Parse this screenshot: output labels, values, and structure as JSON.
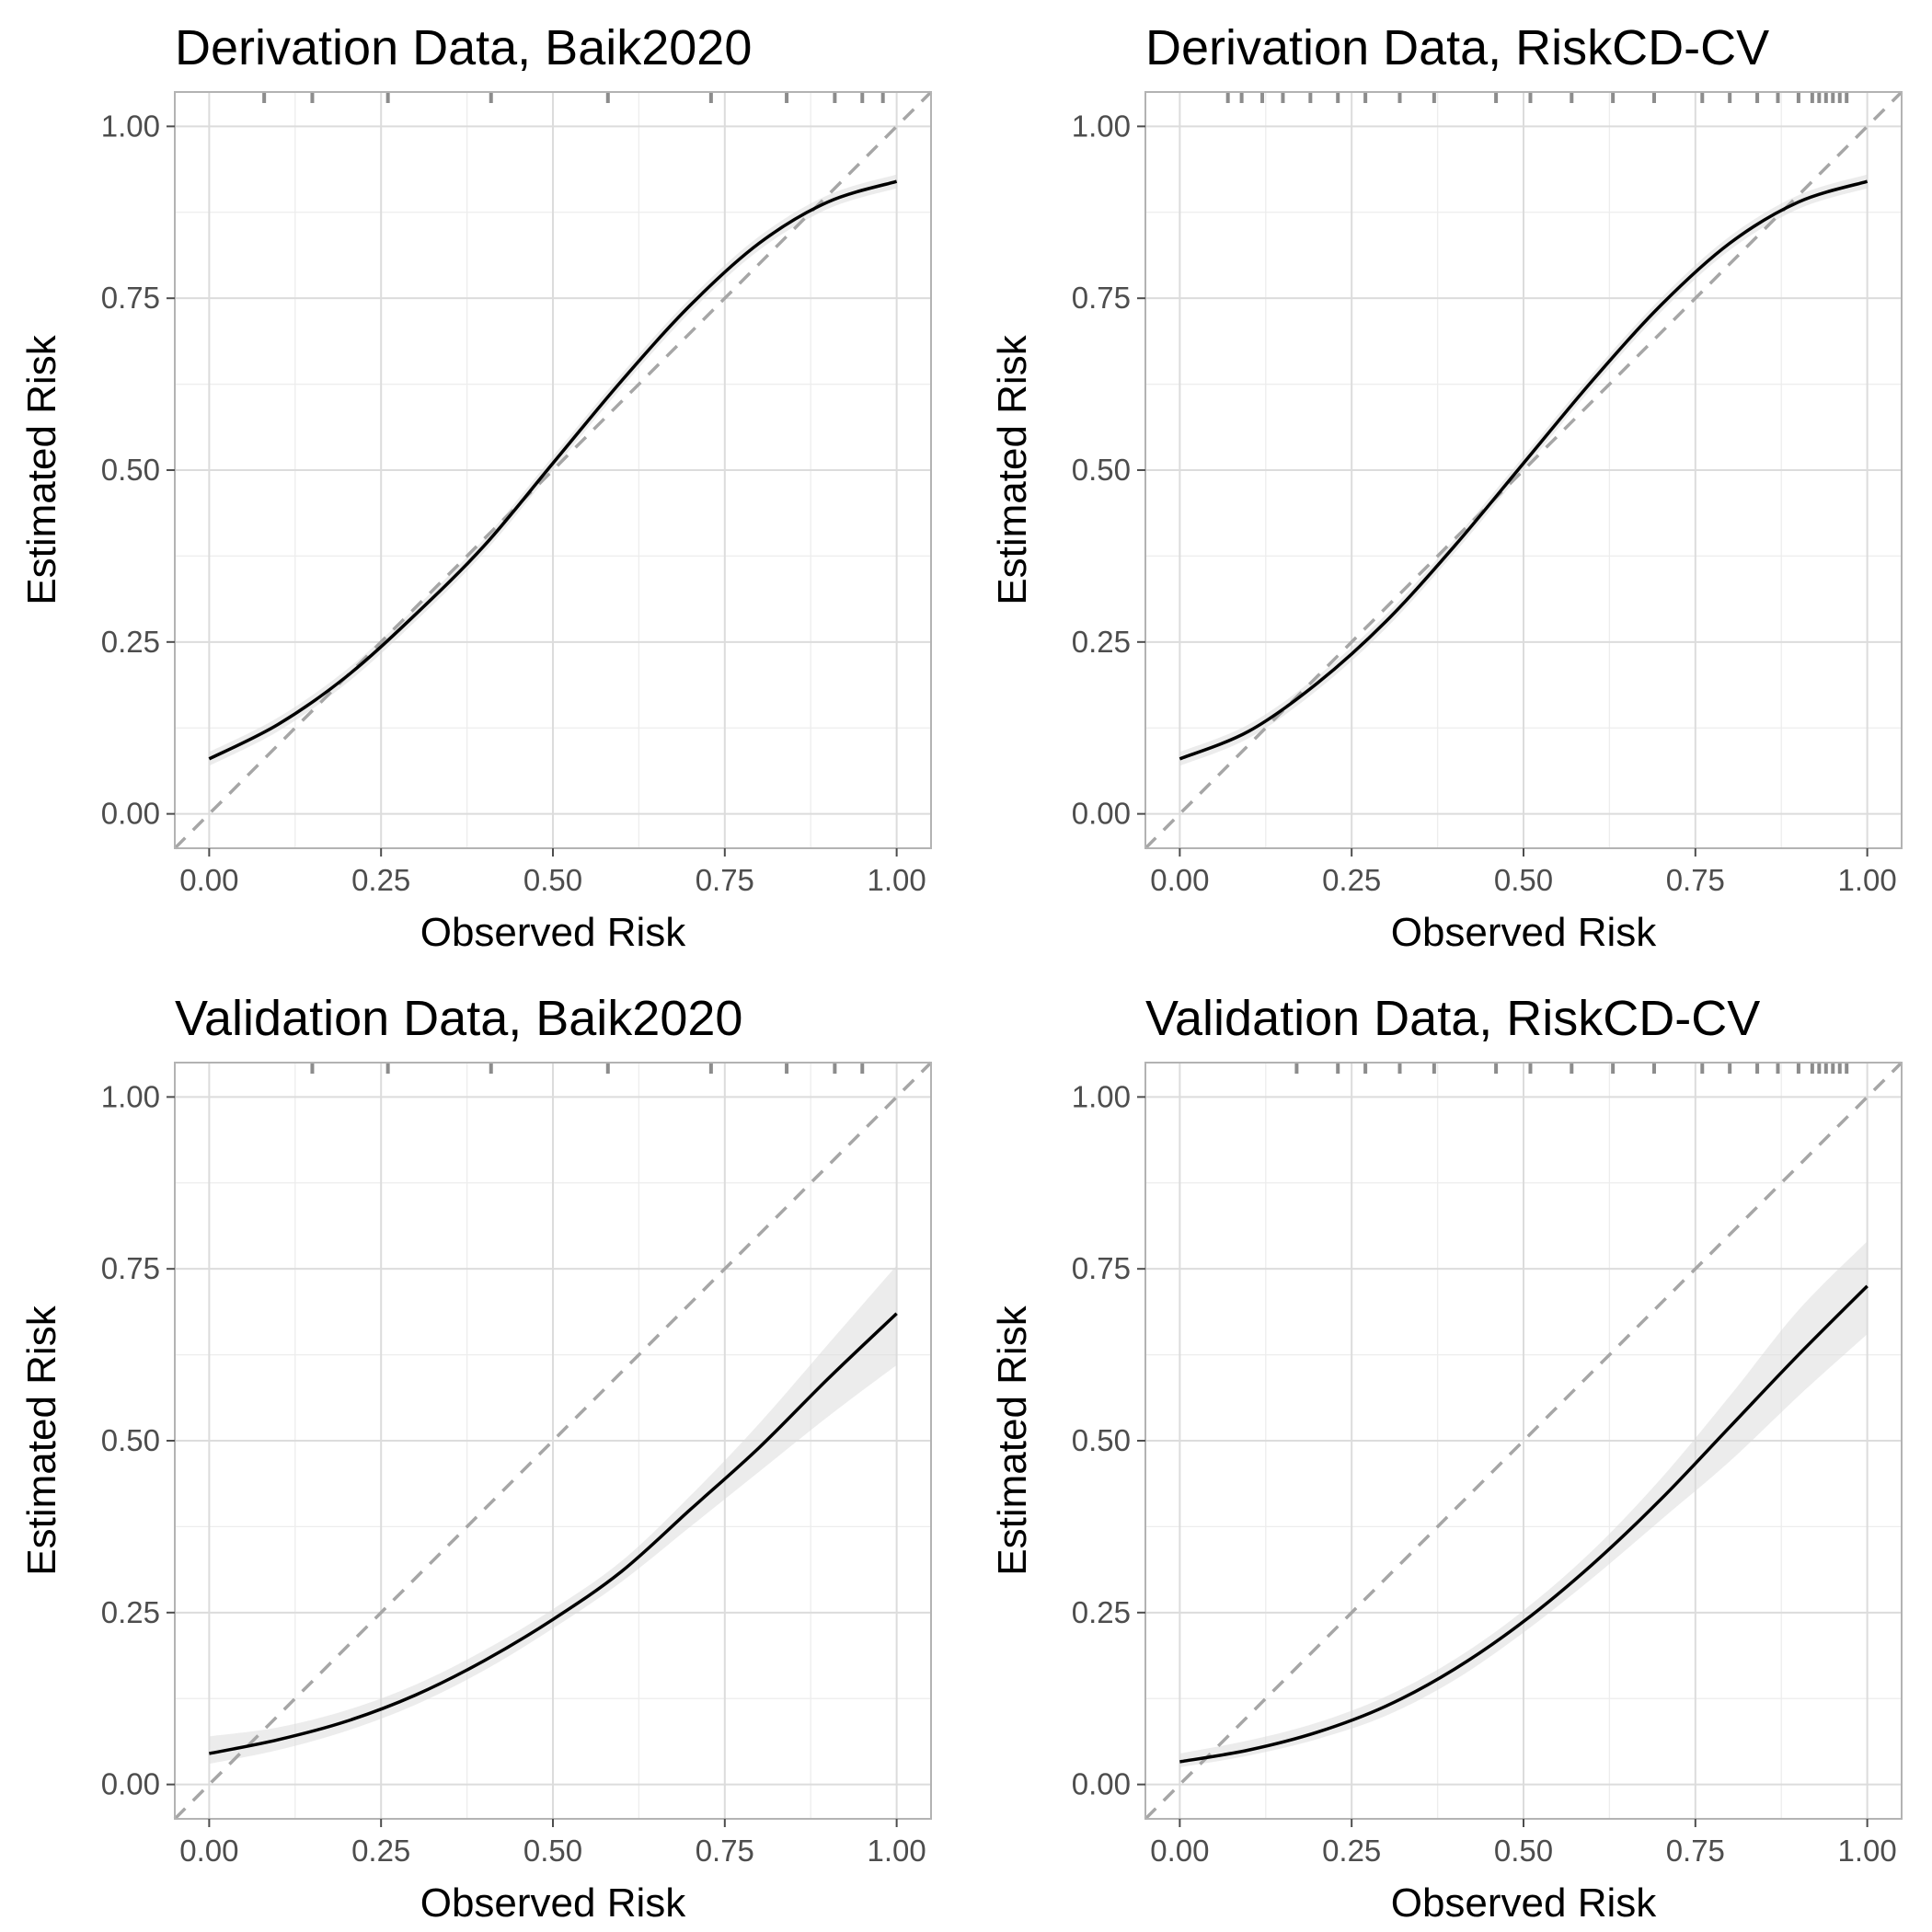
{
  "chart_data": [
    {
      "type": "line",
      "title": "Derivation Data, Baik2020",
      "xlabel": "Observed Risk",
      "ylabel": "Estimated Risk",
      "xlim": [
        -0.05,
        1.05
      ],
      "ylim": [
        -0.05,
        1.05
      ],
      "x_ticks": [
        "0.00",
        "0.25",
        "0.50",
        "0.75",
        "1.00"
      ],
      "y_ticks": [
        "0.00",
        "0.25",
        "0.50",
        "0.75",
        "1.00"
      ],
      "grid": true,
      "reference_line": {
        "style": "dashed",
        "from": [
          0,
          0
        ],
        "to": [
          1,
          1
        ]
      },
      "series": [
        {
          "x": [
            0,
            0.1,
            0.2,
            0.3,
            0.4,
            0.5,
            0.6,
            0.7,
            0.8,
            0.9,
            1.0
          ],
          "y": [
            0.08,
            0.13,
            0.2,
            0.29,
            0.39,
            0.51,
            0.63,
            0.74,
            0.83,
            0.89,
            0.92
          ],
          "lower": [
            0.07,
            0.12,
            0.19,
            0.28,
            0.38,
            0.5,
            0.62,
            0.73,
            0.82,
            0.88,
            0.91
          ],
          "upper": [
            0.09,
            0.14,
            0.21,
            0.3,
            0.4,
            0.52,
            0.64,
            0.75,
            0.84,
            0.9,
            0.93
          ]
        }
      ],
      "rug_x": [
        0.08,
        0.15,
        0.26,
        0.41,
        0.58,
        0.73,
        0.84,
        0.91,
        0.95,
        0.98
      ]
    },
    {
      "type": "line",
      "title": "Derivation Data, RiskCD-CV",
      "xlabel": "Observed Risk",
      "ylabel": "Estimated Risk",
      "xlim": [
        -0.05,
        1.05
      ],
      "ylim": [
        -0.05,
        1.05
      ],
      "x_ticks": [
        "0.00",
        "0.25",
        "0.50",
        "0.75",
        "1.00"
      ],
      "y_ticks": [
        "0.00",
        "0.25",
        "0.50",
        "0.75",
        "1.00"
      ],
      "grid": true,
      "reference_line": {
        "style": "dashed",
        "from": [
          0,
          0
        ],
        "to": [
          1,
          1
        ]
      },
      "series": [
        {
          "x": [
            0,
            0.1,
            0.2,
            0.3,
            0.4,
            0.5,
            0.6,
            0.7,
            0.8,
            0.9,
            1.0
          ],
          "y": [
            0.08,
            0.12,
            0.19,
            0.28,
            0.39,
            0.51,
            0.63,
            0.74,
            0.83,
            0.89,
            0.92
          ],
          "lower": [
            0.07,
            0.11,
            0.18,
            0.27,
            0.38,
            0.5,
            0.62,
            0.73,
            0.82,
            0.88,
            0.91
          ],
          "upper": [
            0.09,
            0.13,
            0.2,
            0.29,
            0.4,
            0.52,
            0.64,
            0.75,
            0.84,
            0.9,
            0.93
          ]
        }
      ],
      "rug_x": [
        0.07,
        0.09,
        0.12,
        0.15,
        0.19,
        0.23,
        0.27,
        0.32,
        0.37,
        0.46,
        0.51,
        0.57,
        0.63,
        0.69,
        0.76,
        0.8,
        0.84,
        0.87,
        0.9,
        0.92,
        0.93,
        0.94,
        0.95,
        0.96,
        0.97
      ]
    },
    {
      "type": "line",
      "title": "Validation Data, Baik2020",
      "xlabel": "Observed Risk",
      "ylabel": "Estimated Risk",
      "xlim": [
        -0.05,
        1.05
      ],
      "ylim": [
        -0.05,
        1.05
      ],
      "x_ticks": [
        "0.00",
        "0.25",
        "0.50",
        "0.75",
        "1.00"
      ],
      "y_ticks": [
        "0.00",
        "0.25",
        "0.50",
        "0.75",
        "1.00"
      ],
      "grid": true,
      "reference_line": {
        "style": "dashed",
        "from": [
          0,
          0
        ],
        "to": [
          1,
          1
        ]
      },
      "series": [
        {
          "x": [
            0,
            0.1,
            0.2,
            0.3,
            0.4,
            0.5,
            0.6,
            0.7,
            0.8,
            0.9,
            1.0
          ],
          "y": [
            0.045,
            0.065,
            0.092,
            0.13,
            0.18,
            0.24,
            0.31,
            0.4,
            0.49,
            0.59,
            0.685
          ],
          "lower": [
            0.03,
            0.05,
            0.078,
            0.116,
            0.166,
            0.227,
            0.295,
            0.375,
            0.455,
            0.535,
            0.61
          ],
          "upper": [
            0.07,
            0.083,
            0.108,
            0.145,
            0.195,
            0.255,
            0.325,
            0.42,
            0.525,
            0.64,
            0.755
          ]
        }
      ],
      "rug_x": [
        0.15,
        0.26,
        0.41,
        0.58,
        0.73,
        0.84,
        0.91,
        0.95
      ]
    },
    {
      "type": "line",
      "title": "Validation Data, RiskCD-CV",
      "xlabel": "Observed Risk",
      "ylabel": "Estimated Risk",
      "xlim": [
        -0.05,
        1.05
      ],
      "ylim": [
        -0.05,
        1.05
      ],
      "x_ticks": [
        "0.00",
        "0.25",
        "0.50",
        "0.75",
        "1.00"
      ],
      "y_ticks": [
        "0.00",
        "0.25",
        "0.50",
        "0.75",
        "1.00"
      ],
      "grid": true,
      "reference_line": {
        "style": "dashed",
        "from": [
          0,
          0
        ],
        "to": [
          1,
          1
        ]
      },
      "series": [
        {
          "x": [
            0,
            0.1,
            0.2,
            0.3,
            0.4,
            0.5,
            0.6,
            0.7,
            0.8,
            0.9,
            1.0
          ],
          "y": [
            0.033,
            0.05,
            0.076,
            0.114,
            0.168,
            0.237,
            0.32,
            0.415,
            0.52,
            0.625,
            0.725
          ],
          "lower": [
            0.025,
            0.042,
            0.066,
            0.1,
            0.152,
            0.221,
            0.3,
            0.385,
            0.47,
            0.565,
            0.655
          ],
          "upper": [
            0.045,
            0.064,
            0.09,
            0.128,
            0.182,
            0.253,
            0.34,
            0.445,
            0.565,
            0.69,
            0.79
          ]
        }
      ],
      "rug_x": [
        0.17,
        0.23,
        0.27,
        0.32,
        0.37,
        0.46,
        0.51,
        0.57,
        0.63,
        0.69,
        0.76,
        0.8,
        0.84,
        0.87,
        0.9,
        0.92,
        0.93,
        0.94,
        0.95,
        0.96,
        0.97
      ]
    }
  ]
}
